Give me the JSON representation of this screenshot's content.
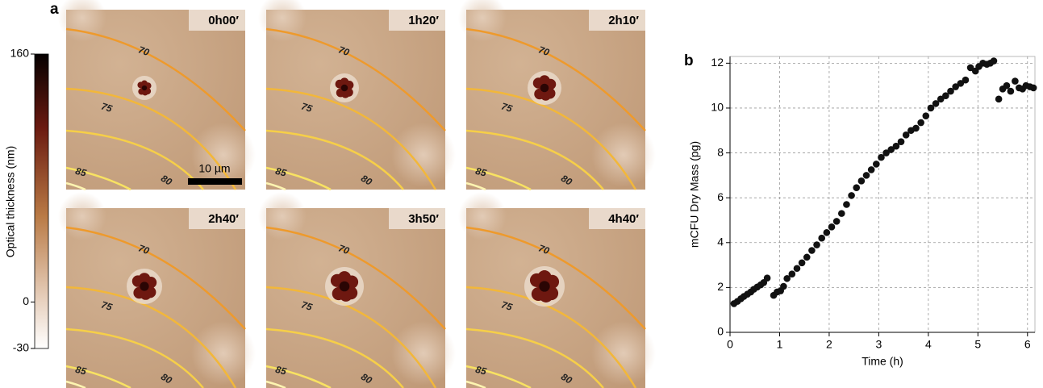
{
  "panel_labels": [
    "a",
    "b"
  ],
  "colorbar": {
    "label": "Optical thickness (nm)",
    "clim": [
      -30,
      160
    ],
    "ticks": [
      160,
      0,
      -30
    ]
  },
  "tiles": [
    {
      "time": "0h00′"
    },
    {
      "time": "1h20′"
    },
    {
      "time": "2h10′"
    },
    {
      "time": "2h40′"
    },
    {
      "time": "3h50′"
    },
    {
      "time": "4h40′"
    }
  ],
  "contour_labels": [
    "70",
    "75",
    "80",
    "85"
  ],
  "scale_bar": "10 µm",
  "chart_data": {
    "type": "scatter",
    "xlabel": "Time (h)",
    "ylabel": "mCFU Dry Mass (pg)",
    "color": "#111111",
    "grid": true,
    "xlim": [
      0,
      6.15
    ],
    "ylim": [
      0,
      12.3
    ],
    "xticks": [
      0,
      1,
      2,
      3,
      4,
      5,
      6
    ],
    "yticks": [
      0,
      2,
      4,
      6,
      8,
      10,
      12
    ],
    "x": [
      0.08,
      0.15,
      0.22,
      0.28,
      0.35,
      0.42,
      0.48,
      0.55,
      0.62,
      0.68,
      0.75,
      0.88,
      0.95,
      1.02,
      1.08,
      1.15,
      1.25,
      1.35,
      1.45,
      1.55,
      1.65,
      1.75,
      1.85,
      1.95,
      2.05,
      2.15,
      2.25,
      2.35,
      2.45,
      2.55,
      2.65,
      2.75,
      2.85,
      2.95,
      3.05,
      3.15,
      3.25,
      3.35,
      3.45,
      3.55,
      3.65,
      3.75,
      3.85,
      3.95,
      4.05,
      4.15,
      4.25,
      4.35,
      4.45,
      4.55,
      4.65,
      4.75,
      4.85,
      4.95,
      5.02,
      5.1,
      5.18,
      5.25,
      5.32,
      5.42,
      5.5,
      5.58,
      5.66,
      5.75,
      5.83,
      5.9,
      5.97,
      6.05,
      6.12
    ],
    "values": [
      1.28,
      1.38,
      1.5,
      1.6,
      1.7,
      1.8,
      1.92,
      2.02,
      2.12,
      2.22,
      2.42,
      1.65,
      1.8,
      1.85,
      2.05,
      2.4,
      2.6,
      2.85,
      3.1,
      3.35,
      3.65,
      3.9,
      4.2,
      4.45,
      4.7,
      4.95,
      5.3,
      5.7,
      6.1,
      6.45,
      6.75,
      7.0,
      7.25,
      7.5,
      7.8,
      8.0,
      8.15,
      8.3,
      8.5,
      8.8,
      9.0,
      9.1,
      9.35,
      9.65,
      10.0,
      10.2,
      10.4,
      10.55,
      10.75,
      10.95,
      11.1,
      11.25,
      11.8,
      11.65,
      11.85,
      12.0,
      11.95,
      12.0,
      12.1,
      10.4,
      10.85,
      11.0,
      10.75,
      11.2,
      10.9,
      10.85,
      11.0,
      10.95,
      10.9
    ]
  }
}
